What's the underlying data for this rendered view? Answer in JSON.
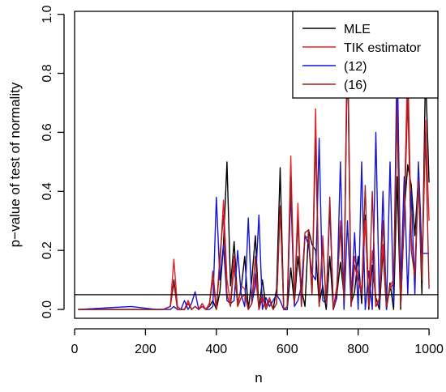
{
  "chart_data": {
    "type": "line",
    "xlabel": "n",
    "ylabel": "p−value of test of normality",
    "xlim": [
      0,
      1025
    ],
    "ylim": [
      -0.03,
      1.01
    ],
    "x_ticks": [
      0,
      200,
      400,
      600,
      800,
      1000
    ],
    "y_ticks": [
      0.0,
      0.2,
      0.4,
      0.6,
      0.8,
      1.0
    ],
    "x_tick_labels": [
      "0",
      "200",
      "400",
      "600",
      "800",
      "1000"
    ],
    "y_tick_labels": [
      "0.0",
      "0.2",
      "0.4",
      "0.6",
      "0.8",
      "1.0"
    ],
    "reference_line": 0.05,
    "legend_position": "top-right",
    "grid": false,
    "x": [
      10,
      160,
      230,
      250,
      270,
      280,
      290,
      300,
      310,
      320,
      330,
      340,
      350,
      360,
      370,
      380,
      390,
      400,
      410,
      420,
      430,
      440,
      450,
      460,
      470,
      480,
      490,
      500,
      510,
      520,
      530,
      540,
      550,
      560,
      570,
      580,
      590,
      600,
      610,
      620,
      630,
      640,
      650,
      660,
      670,
      680,
      690,
      700,
      710,
      720,
      730,
      740,
      750,
      760,
      770,
      780,
      790,
      800,
      810,
      820,
      830,
      840,
      850,
      860,
      870,
      880,
      890,
      900,
      910,
      920,
      930,
      940,
      950,
      960,
      970,
      980,
      990,
      1000
    ],
    "series": [
      {
        "name": "MLE",
        "color": "#000000",
        "values": [
          0.0,
          0.0,
          0.0,
          0.0,
          0.01,
          0.1,
          0.01,
          0.0,
          0.0,
          0.03,
          0.0,
          0.01,
          0.0,
          0.02,
          0.0,
          0.01,
          0.03,
          0.0,
          0.06,
          0.22,
          0.5,
          0.08,
          0.23,
          0.02,
          0.07,
          0.18,
          0.0,
          0.1,
          0.25,
          0.0,
          0.1,
          0.01,
          0.04,
          0.0,
          0.07,
          0.48,
          0.0,
          0.0,
          0.14,
          0.02,
          0.18,
          0.07,
          0.01,
          0.27,
          0.22,
          0.2,
          0.02,
          0.08,
          0.0,
          0.18,
          0.0,
          0.05,
          0.16,
          0.05,
          0.9,
          0.02,
          0.06,
          0.18,
          0.02,
          0.32,
          0.0,
          0.15,
          0.04,
          0.0,
          0.2,
          0.0,
          0.09,
          0.0,
          0.45,
          0.0,
          0.33,
          0.49,
          0.42,
          0.25,
          0.45,
          0.05,
          0.81,
          0.43
        ]
      },
      {
        "name": "TIK estimator",
        "color": "#E8202A",
        "values": [
          0.0,
          0.0,
          0.0,
          0.0,
          0.01,
          0.17,
          0.01,
          0.0,
          0.0,
          0.03,
          0.0,
          0.01,
          0.0,
          0.02,
          0.0,
          0.02,
          0.1,
          0.0,
          0.15,
          0.37,
          0.1,
          0.02,
          0.18,
          0.01,
          0.08,
          0.07,
          0.0,
          0.02,
          0.12,
          0.0,
          0.05,
          0.01,
          0.04,
          0.0,
          0.02,
          0.35,
          0.0,
          0.01,
          0.52,
          0.02,
          0.36,
          0.01,
          0.25,
          0.24,
          0.05,
          0.68,
          0.01,
          0.25,
          0.02,
          0.35,
          0.0,
          0.08,
          0.3,
          0.05,
          0.99,
          0.01,
          0.18,
          0.12,
          0.06,
          0.3,
          0.01,
          0.2,
          0.01,
          0.04,
          0.22,
          0.01,
          0.08,
          0.1,
          0.71,
          0.01,
          0.33,
          0.85,
          0.24,
          0.13,
          0.46,
          0.11,
          0.64,
          0.3
        ]
      },
      {
        "name": "(12)",
        "color": "#1414D2",
        "values": [
          0.0,
          0.01,
          0.0,
          0.0,
          0.0,
          0.01,
          0.0,
          0.0,
          0.03,
          0.0,
          0.02,
          0.06,
          0.0,
          0.01,
          0.0,
          0.0,
          0.01,
          0.38,
          0.1,
          0.22,
          0.03,
          0.02,
          0.03,
          0.2,
          0.05,
          0.01,
          0.31,
          0.02,
          0.08,
          0.32,
          0.0,
          0.04,
          0.01,
          0.03,
          0.05,
          0.03,
          0.0,
          0.0,
          0.4,
          0.01,
          0.03,
          0.08,
          0.25,
          0.22,
          0.12,
          0.1,
          0.58,
          0.03,
          0.02,
          0.35,
          0.0,
          0.04,
          0.5,
          0.0,
          0.3,
          0.02,
          0.26,
          0.0,
          0.5,
          0.0,
          0.13,
          0.0,
          0.6,
          0.01,
          0.4,
          0.0,
          0.5,
          0.02,
          0.9,
          0.08,
          0.45,
          0.05,
          0.4,
          0.05,
          0.5,
          0.19,
          0.19,
          0.19
        ]
      },
      {
        "name": "(16)",
        "color": "#A31E22",
        "values": [
          0.0,
          0.0,
          0.0,
          0.0,
          0.01,
          0.09,
          0.0,
          0.0,
          0.0,
          0.02,
          0.0,
          0.01,
          0.0,
          0.01,
          0.0,
          0.01,
          0.13,
          0.0,
          0.18,
          0.32,
          0.05,
          0.01,
          0.15,
          0.01,
          0.04,
          0.05,
          0.0,
          0.02,
          0.18,
          0.0,
          0.04,
          0.0,
          0.03,
          0.0,
          0.02,
          0.35,
          0.0,
          0.01,
          0.45,
          0.02,
          0.3,
          0.01,
          0.26,
          0.27,
          0.05,
          0.58,
          0.01,
          0.22,
          0.02,
          0.38,
          0.0,
          0.06,
          0.28,
          0.03,
          0.95,
          0.01,
          0.15,
          0.1,
          0.05,
          0.42,
          0.01,
          0.4,
          0.01,
          0.03,
          0.3,
          0.01,
          0.07,
          0.09,
          0.68,
          0.01,
          0.3,
          0.72,
          0.2,
          0.11,
          0.44,
          0.1,
          0.6,
          0.07
        ]
      }
    ]
  }
}
